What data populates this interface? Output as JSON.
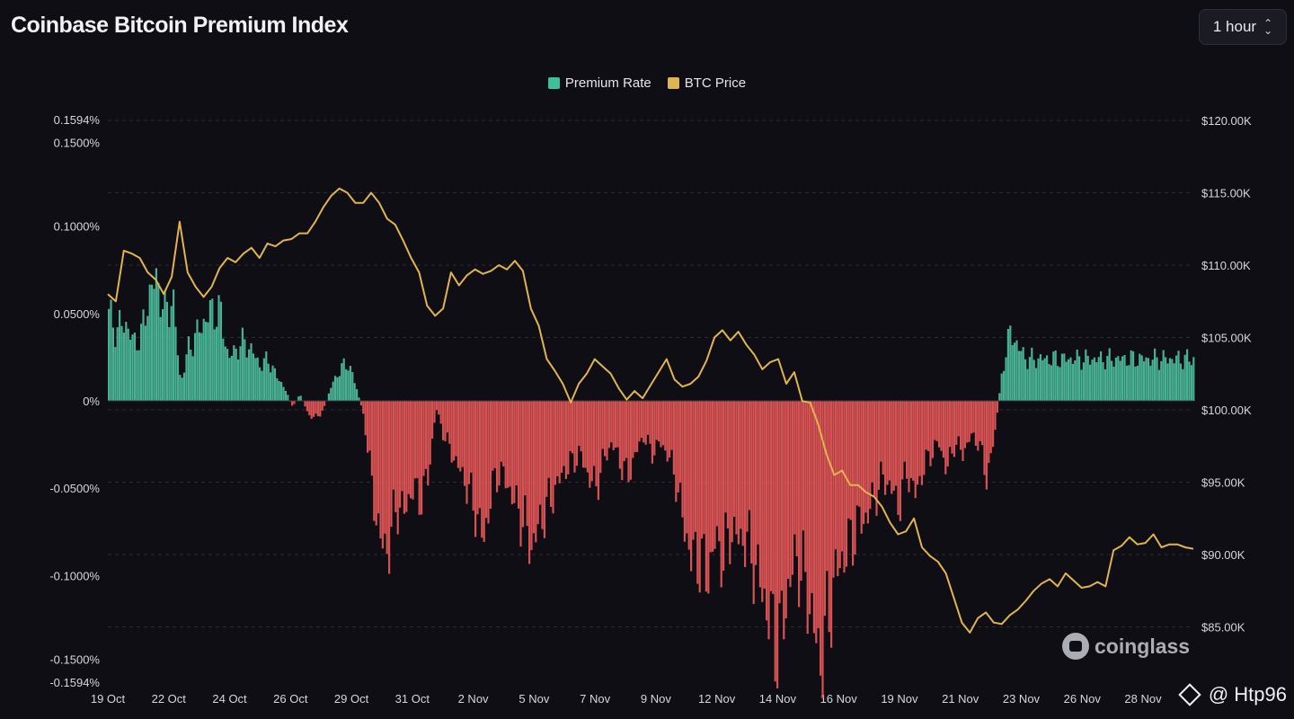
{
  "header": {
    "title": "Coinbase Bitcoin Premium Index",
    "interval": "1 hour"
  },
  "legend": {
    "items": [
      {
        "label": "Premium Rate",
        "color": "#3fbf97"
      },
      {
        "label": "BTC Price",
        "color": "#e0b44f"
      }
    ]
  },
  "colors": {
    "positive": "#4cb99a",
    "negative": "#e35656",
    "price_line": "#e0b44f",
    "grid": "#2a2a33",
    "background": "#0e0e14"
  },
  "watermark": {
    "text": "coinglass",
    "icon": "coinglass-logo-icon"
  },
  "credit": {
    "text": "@ Htp96",
    "icon": "diamond-icon"
  },
  "chart_data": {
    "type": "bar+line",
    "title": "Coinbase Bitcoin Premium Index",
    "x_tick_labels": [
      "19 Oct",
      "22 Oct",
      "24 Oct",
      "26 Oct",
      "29 Oct",
      "31 Oct",
      "2 Nov",
      "5 Nov",
      "7 Nov",
      "9 Nov",
      "12 Nov",
      "14 Nov",
      "16 Nov",
      "19 Nov",
      "21 Nov",
      "23 Nov",
      "26 Nov",
      "28 Nov"
    ],
    "left_axis": {
      "ylim": [
        -0.1594,
        0.1594
      ],
      "tick_values": [
        0.1594,
        0.15,
        0.1,
        0.05,
        0,
        -0.05,
        -0.1,
        -0.15,
        -0.1594
      ],
      "tick_labels": [
        "0.1594%",
        "0.1500%",
        "0.1000%",
        "0.0500%",
        "0%",
        "-0.0500%",
        "-0.1000%",
        "-0.1500%",
        "-0.1594%"
      ]
    },
    "right_axis": {
      "ylim": [
        82500,
        122500
      ],
      "tick_values": [
        120000,
        115000,
        110000,
        105000,
        100000,
        95000,
        90000,
        85000
      ],
      "tick_labels": [
        "$120.00K",
        "$115.00K",
        "$110.00K",
        "$105.00K",
        "$100.00K",
        "$95.00K",
        "$90.00K",
        "$85.00K"
      ]
    },
    "grid": true,
    "legend_position": "top-center",
    "series": [
      {
        "name": "Premium Rate",
        "kind": "bar",
        "unit": "%",
        "points": [
          [
            0,
            0.05
          ],
          [
            0.5,
            0.04
          ],
          [
            1,
            0.046
          ],
          [
            1.5,
            0.034
          ],
          [
            2,
            0.036
          ],
          [
            2.5,
            0.06
          ],
          [
            3,
            0.07
          ],
          [
            3.5,
            0.05
          ],
          [
            4,
            0.06
          ],
          [
            4.5,
            0.01
          ],
          [
            5,
            0.03
          ],
          [
            5.5,
            0.038
          ],
          [
            6,
            0.046
          ],
          [
            6.5,
            0.052
          ],
          [
            7,
            0.05
          ],
          [
            7.5,
            0.024
          ],
          [
            8,
            0.03
          ],
          [
            8.5,
            0.034
          ],
          [
            9,
            0.028
          ],
          [
            9.5,
            0.02
          ],
          [
            10,
            0.024
          ],
          [
            10.5,
            0.014
          ],
          [
            11,
            0.008
          ],
          [
            11.5,
            -0.004
          ],
          [
            12,
            0.004
          ],
          [
            12.5,
            -0.008
          ],
          [
            13,
            -0.01
          ],
          [
            13.5,
            -0.004
          ],
          [
            14,
            0.01
          ],
          [
            14.5,
            0.018
          ],
          [
            15,
            0.022
          ],
          [
            15.5,
            0.008
          ],
          [
            16,
            -0.01
          ],
          [
            16.5,
            -0.05
          ],
          [
            17,
            -0.08
          ],
          [
            17.5,
            -0.086
          ],
          [
            18,
            -0.06
          ],
          [
            18.5,
            -0.064
          ],
          [
            19,
            -0.05
          ],
          [
            19.5,
            -0.056
          ],
          [
            20,
            -0.044
          ],
          [
            20.5,
            -0.004
          ],
          [
            21,
            -0.02
          ],
          [
            21.5,
            -0.03
          ],
          [
            22,
            -0.04
          ],
          [
            22.5,
            -0.05
          ],
          [
            23,
            -0.064
          ],
          [
            23.5,
            -0.08
          ],
          [
            24,
            -0.05
          ],
          [
            24.5,
            -0.04
          ],
          [
            25,
            -0.048
          ],
          [
            25.5,
            -0.06
          ],
          [
            26,
            -0.07
          ],
          [
            26.5,
            -0.084
          ],
          [
            27,
            -0.07
          ],
          [
            27.5,
            -0.06
          ],
          [
            28,
            -0.05
          ],
          [
            28.5,
            -0.04
          ],
          [
            29,
            -0.036
          ],
          [
            29.5,
            -0.03
          ],
          [
            30,
            -0.042
          ],
          [
            30.5,
            -0.05
          ],
          [
            31,
            -0.034
          ],
          [
            31.5,
            -0.024
          ],
          [
            32,
            -0.034
          ],
          [
            32.5,
            -0.044
          ],
          [
            33,
            -0.03
          ],
          [
            33.5,
            -0.02
          ],
          [
            34,
            -0.03
          ],
          [
            34.5,
            -0.024
          ],
          [
            35,
            -0.03
          ],
          [
            35.5,
            -0.044
          ],
          [
            36,
            -0.07
          ],
          [
            36.5,
            -0.09
          ],
          [
            37,
            -0.09
          ],
          [
            37.5,
            -0.1
          ],
          [
            38,
            -0.08
          ],
          [
            38.5,
            -0.09
          ],
          [
            39,
            -0.074
          ],
          [
            39.5,
            -0.08
          ],
          [
            40,
            -0.08
          ],
          [
            40.5,
            -0.096
          ],
          [
            41,
            -0.11
          ],
          [
            41.5,
            -0.13
          ],
          [
            42,
            -0.14
          ],
          [
            42.5,
            -0.11
          ],
          [
            43,
            -0.09
          ],
          [
            43.5,
            -0.1
          ],
          [
            44,
            -0.12
          ],
          [
            44.5,
            -0.15
          ],
          [
            45,
            -0.13
          ],
          [
            45.5,
            -0.1
          ],
          [
            46,
            -0.09
          ],
          [
            46.5,
            -0.08
          ],
          [
            47,
            -0.07
          ],
          [
            47.5,
            -0.066
          ],
          [
            48,
            -0.054
          ],
          [
            48.5,
            -0.044
          ],
          [
            49,
            -0.05
          ],
          [
            49.5,
            -0.06
          ],
          [
            50,
            -0.04
          ],
          [
            50.5,
            -0.054
          ],
          [
            51,
            -0.04
          ],
          [
            51.5,
            -0.03
          ],
          [
            52,
            -0.024
          ],
          [
            52.5,
            -0.04
          ],
          [
            53,
            -0.024
          ],
          [
            53.5,
            -0.03
          ],
          [
            54,
            -0.02
          ],
          [
            54.5,
            -0.024
          ],
          [
            55,
            -0.044
          ],
          [
            55.5,
            -0.02
          ],
          [
            56,
            0.02
          ],
          [
            56.5,
            0.04
          ],
          [
            57,
            0.03
          ],
          [
            57.5,
            0.024
          ]
        ]
      },
      {
        "name": "BTC Price",
        "kind": "line",
        "unit": "USD",
        "points": [
          [
            0,
            108000
          ],
          [
            0.5,
            107500
          ],
          [
            1,
            111000
          ],
          [
            1.5,
            110800
          ],
          [
            2,
            110500
          ],
          [
            2.5,
            109500
          ],
          [
            3,
            109000
          ],
          [
            3.5,
            108000
          ],
          [
            4,
            109200
          ],
          [
            4.5,
            113000
          ],
          [
            5,
            109500
          ],
          [
            5.5,
            108500
          ],
          [
            6,
            107800
          ],
          [
            6.5,
            108500
          ],
          [
            7,
            109800
          ],
          [
            7.5,
            110500
          ],
          [
            8,
            110200
          ],
          [
            8.5,
            110800
          ],
          [
            9,
            111200
          ],
          [
            9.5,
            110500
          ],
          [
            10,
            111500
          ],
          [
            10.5,
            111300
          ],
          [
            11,
            111700
          ],
          [
            11.5,
            111800
          ],
          [
            12,
            112200
          ],
          [
            12.5,
            112200
          ],
          [
            13,
            113000
          ],
          [
            13.5,
            114000
          ],
          [
            14,
            114800
          ],
          [
            14.5,
            115300
          ],
          [
            15,
            115000
          ],
          [
            15.5,
            114300
          ],
          [
            16,
            114300
          ],
          [
            16.5,
            115000
          ],
          [
            17,
            114300
          ],
          [
            17.5,
            113200
          ],
          [
            18,
            112800
          ],
          [
            18.5,
            111700
          ],
          [
            19,
            110500
          ],
          [
            19.5,
            109500
          ],
          [
            20,
            107200
          ],
          [
            20.5,
            106500
          ],
          [
            21,
            107000
          ],
          [
            21.5,
            109500
          ],
          [
            22,
            108600
          ],
          [
            22.5,
            109300
          ],
          [
            23,
            109700
          ],
          [
            23.5,
            109400
          ],
          [
            24,
            109600
          ],
          [
            24.5,
            110000
          ],
          [
            25,
            109700
          ],
          [
            25.5,
            110300
          ],
          [
            26,
            109600
          ],
          [
            26.5,
            107000
          ],
          [
            27,
            105800
          ],
          [
            27.5,
            103500
          ],
          [
            28,
            102700
          ],
          [
            28.5,
            101800
          ],
          [
            29,
            100500
          ],
          [
            29.5,
            101800
          ],
          [
            30,
            102500
          ],
          [
            30.5,
            103500
          ],
          [
            31,
            103000
          ],
          [
            31.5,
            102500
          ],
          [
            32,
            101500
          ],
          [
            32.5,
            100700
          ],
          [
            33,
            101300
          ],
          [
            33.5,
            100800
          ],
          [
            34,
            101700
          ],
          [
            34.5,
            102600
          ],
          [
            35,
            103500
          ],
          [
            35.5,
            102100
          ],
          [
            36,
            101600
          ],
          [
            36.5,
            101800
          ],
          [
            37,
            102300
          ],
          [
            37.5,
            103400
          ],
          [
            38,
            105000
          ],
          [
            38.5,
            105500
          ],
          [
            39,
            104800
          ],
          [
            39.5,
            105400
          ],
          [
            40,
            104500
          ],
          [
            40.5,
            103800
          ],
          [
            41,
            102800
          ],
          [
            41.5,
            103300
          ],
          [
            42,
            103500
          ],
          [
            42.5,
            101800
          ],
          [
            43,
            102600
          ],
          [
            43.5,
            100600
          ],
          [
            44,
            100500
          ],
          [
            44.5,
            99000
          ],
          [
            45,
            97000
          ],
          [
            45.5,
            95500
          ],
          [
            46,
            95800
          ],
          [
            46.5,
            94800
          ],
          [
            47,
            94800
          ],
          [
            47.5,
            94300
          ],
          [
            48,
            94000
          ],
          [
            48.5,
            93300
          ],
          [
            49,
            92200
          ],
          [
            49.5,
            91400
          ],
          [
            50,
            91600
          ],
          [
            50.5,
            92500
          ],
          [
            51,
            90500
          ],
          [
            51.5,
            89900
          ],
          [
            52,
            89500
          ],
          [
            52.5,
            88700
          ],
          [
            53,
            87000
          ],
          [
            53.5,
            85300
          ],
          [
            54,
            84600
          ],
          [
            54.5,
            85600
          ],
          [
            55,
            86000
          ],
          [
            55.5,
            85300
          ],
          [
            56,
            85200
          ],
          [
            56.5,
            85800
          ],
          [
            57,
            86200
          ],
          [
            57.5,
            86800
          ],
          [
            58,
            87500
          ],
          [
            58.5,
            88000
          ],
          [
            59,
            88300
          ],
          [
            59.5,
            87800
          ],
          [
            60,
            88700
          ],
          [
            60.5,
            88200
          ],
          [
            61,
            87700
          ],
          [
            61.5,
            87800
          ],
          [
            62,
            88100
          ],
          [
            62.5,
            87800
          ],
          [
            63,
            90300
          ],
          [
            63.5,
            90600
          ],
          [
            64,
            91200
          ],
          [
            64.5,
            90700
          ],
          [
            65,
            90800
          ],
          [
            65.5,
            91400
          ],
          [
            66,
            90500
          ],
          [
            66.5,
            90700
          ],
          [
            67,
            90700
          ],
          [
            67.5,
            90500
          ],
          [
            68,
            90400
          ]
        ]
      }
    ]
  }
}
